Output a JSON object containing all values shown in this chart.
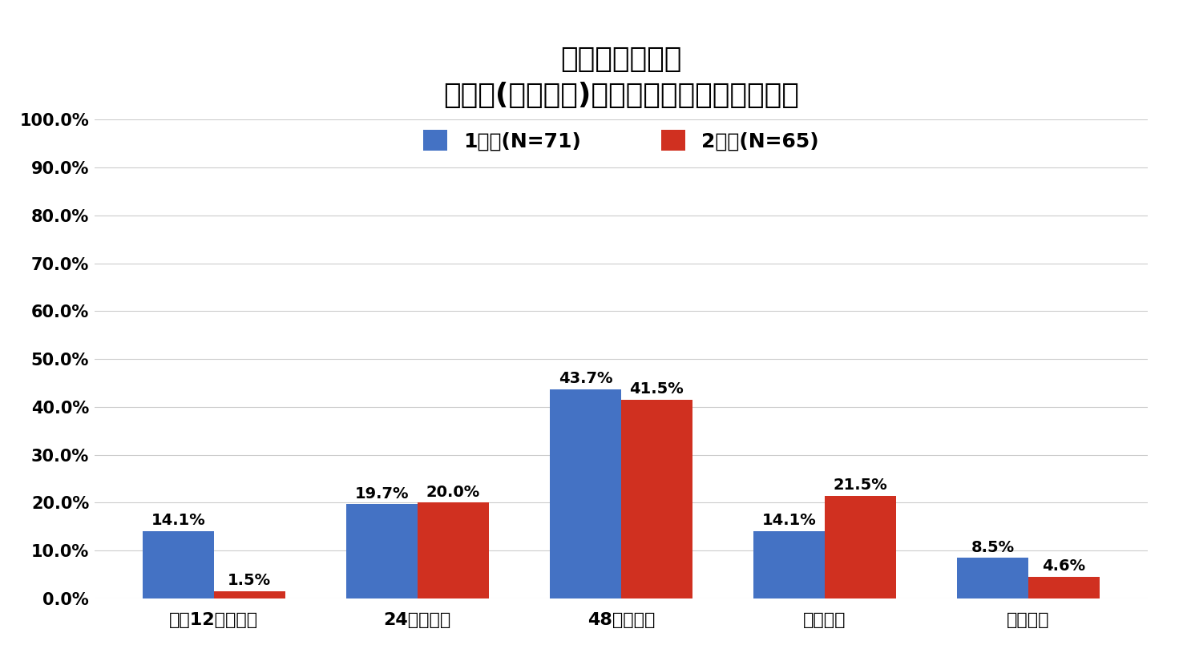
{
  "title_line1": "コロナワクチン",
  "title_line2": "副反応(注射部位)が治るまでにかかった時間",
  "categories": [
    "接種12時間以内",
    "24時間以内",
    "48時間以内",
    "それ以降",
    "症状なし"
  ],
  "series1_label": "1回目(N=71)",
  "series2_label": "2回目(N=65)",
  "series1_values": [
    14.1,
    19.7,
    43.7,
    14.1,
    8.5
  ],
  "series2_values": [
    1.5,
    20.0,
    41.5,
    21.5,
    4.6
  ],
  "series1_labels": [
    "14.1%",
    "19.7%",
    "43.7%",
    "14.1%",
    "8.5%"
  ],
  "series2_labels": [
    "1.5%",
    "20.0%",
    "41.5%",
    "21.5%",
    "4.6%"
  ],
  "series1_color": "#4472C4",
  "series2_color": "#D03020",
  "ylim": [
    0,
    100
  ],
  "yticks": [
    0,
    10,
    20,
    30,
    40,
    50,
    60,
    70,
    80,
    90,
    100
  ],
  "ytick_labels": [
    "0.0%",
    "10.0%",
    "20.0%",
    "30.0%",
    "40.0%",
    "50.0%",
    "60.0%",
    "70.0%",
    "80.0%",
    "90.0%",
    "100.0%"
  ],
  "background_color": "#ffffff",
  "bar_width": 0.35,
  "title_fontsize": 26,
  "tick_fontsize": 15,
  "legend_fontsize": 18,
  "annotation_fontsize": 14
}
